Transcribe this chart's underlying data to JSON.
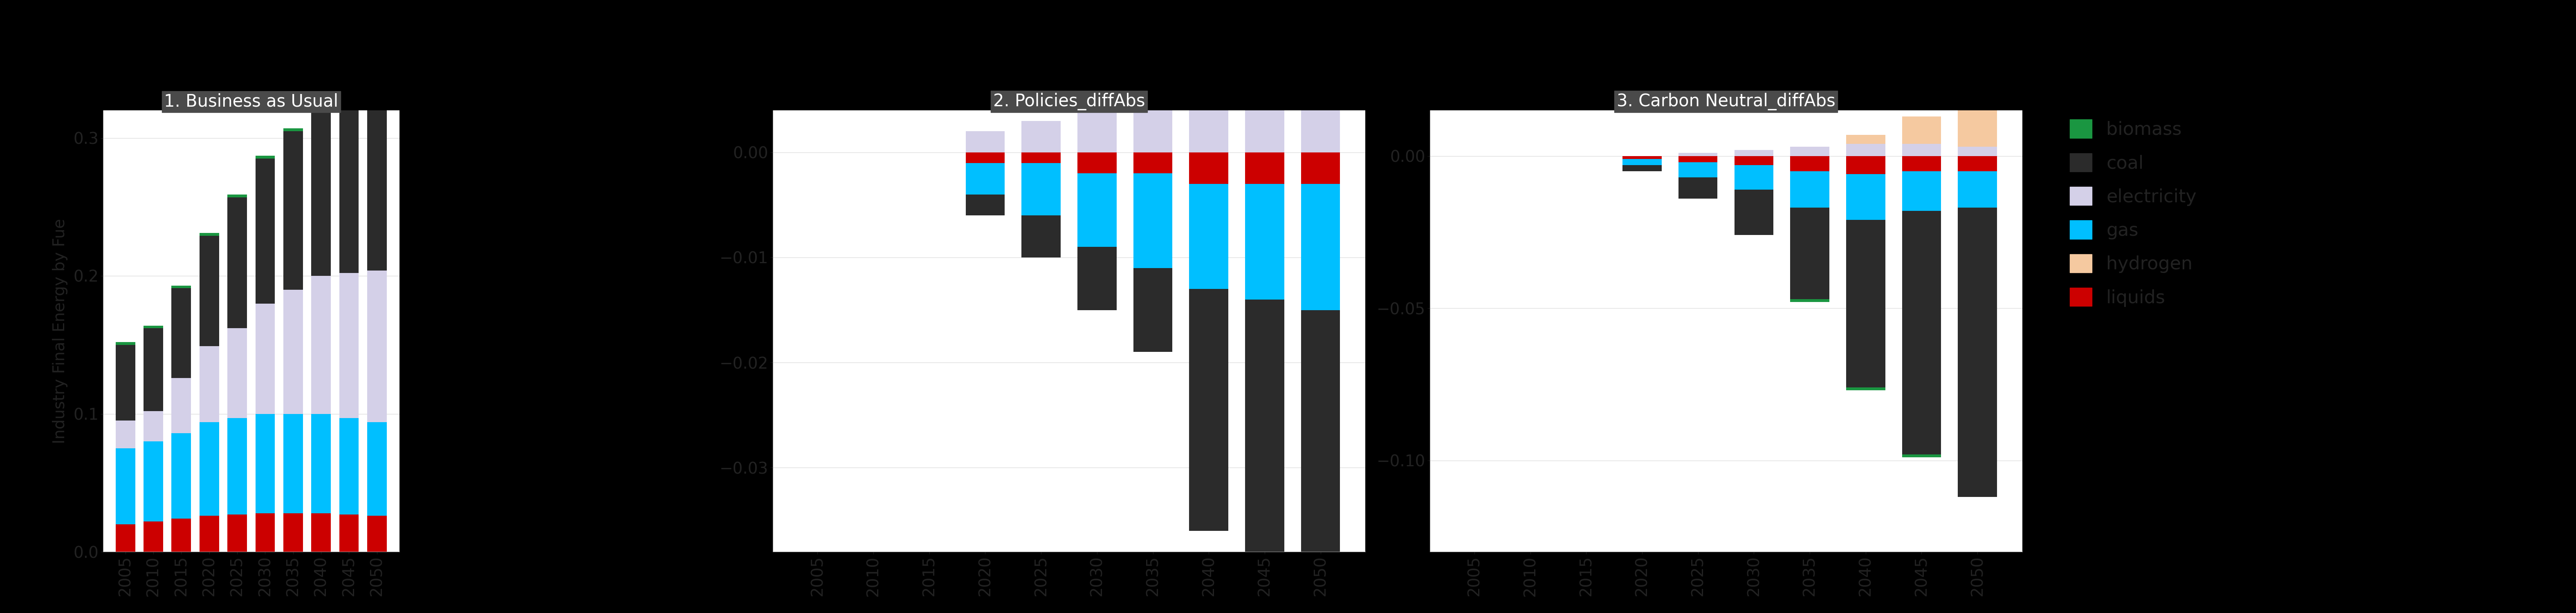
{
  "years": [
    2005,
    2010,
    2015,
    2020,
    2025,
    2030,
    2035,
    2040,
    2045,
    2050
  ],
  "bau": {
    "liquids": [
      0.02,
      0.022,
      0.024,
      0.026,
      0.027,
      0.028,
      0.028,
      0.028,
      0.027,
      0.026
    ],
    "gas": [
      0.055,
      0.058,
      0.062,
      0.068,
      0.07,
      0.072,
      0.072,
      0.072,
      0.07,
      0.068
    ],
    "electricity": [
      0.02,
      0.022,
      0.04,
      0.055,
      0.065,
      0.08,
      0.09,
      0.1,
      0.105,
      0.11
    ],
    "coal": [
      0.055,
      0.06,
      0.065,
      0.08,
      0.095,
      0.105,
      0.115,
      0.12,
      0.12,
      0.12
    ],
    "biomass": [
      0.002,
      0.002,
      0.002,
      0.002,
      0.002,
      0.002,
      0.002,
      0.002,
      0.002,
      0.002
    ],
    "hydrogen": [
      0.0,
      0.0,
      0.0,
      0.0,
      0.0,
      0.0,
      0.0,
      0.003,
      0.005,
      0.007
    ]
  },
  "policies_diff": {
    "liquids": [
      0.0,
      0.0,
      0.0,
      -0.001,
      -0.001,
      -0.002,
      -0.002,
      -0.003,
      -0.003,
      -0.003
    ],
    "gas": [
      0.0,
      0.0,
      0.0,
      -0.003,
      -0.005,
      -0.007,
      -0.009,
      -0.01,
      -0.011,
      -0.012
    ],
    "electricity": [
      0.0,
      0.0,
      0.0,
      0.002,
      0.003,
      0.004,
      0.004,
      0.004,
      0.004,
      0.004
    ],
    "coal": [
      0.0,
      0.0,
      0.0,
      -0.002,
      -0.004,
      -0.006,
      -0.008,
      -0.023,
      -0.029,
      -0.032
    ],
    "biomass": [
      0.0,
      0.0,
      0.0,
      0.0,
      0.0,
      0.0,
      0.0,
      0.0,
      0.0,
      0.0
    ],
    "hydrogen": [
      0.0,
      0.0,
      0.0,
      0.0,
      0.0,
      0.0,
      0.0,
      0.001,
      0.002,
      0.003
    ]
  },
  "cn_diff": {
    "liquids": [
      0.0,
      0.0,
      0.0,
      -0.001,
      -0.002,
      -0.003,
      -0.005,
      -0.006,
      -0.005,
      -0.005
    ],
    "gas": [
      0.0,
      0.0,
      0.0,
      -0.002,
      -0.005,
      -0.008,
      -0.012,
      -0.015,
      -0.013,
      -0.012
    ],
    "electricity": [
      0.0,
      0.0,
      0.0,
      0.0,
      0.001,
      0.002,
      0.003,
      0.004,
      0.004,
      0.003
    ],
    "coal": [
      0.0,
      0.0,
      0.0,
      -0.002,
      -0.007,
      -0.015,
      -0.03,
      -0.055,
      -0.08,
      -0.095
    ],
    "biomass": [
      0.0,
      0.0,
      0.0,
      0.0,
      0.0,
      0.0,
      -0.001,
      -0.001,
      -0.001,
      0.0
    ],
    "hydrogen": [
      0.0,
      0.0,
      0.0,
      0.0,
      0.0,
      0.0,
      0.0,
      0.003,
      0.009,
      0.015
    ]
  },
  "colors": {
    "biomass": "#1a9641",
    "coal": "#2b2b2b",
    "electricity": "#d4d0e8",
    "gas": "#00bfff",
    "hydrogen": "#f5c9a0",
    "liquids": "#cc0000"
  },
  "bau_ylim": [
    0.0,
    0.32
  ],
  "bau_yticks": [
    0.0,
    0.1,
    0.2,
    0.3
  ],
  "policies_ylim": [
    -0.038,
    0.004
  ],
  "policies_yticks": [
    0.0,
    -0.01,
    -0.02,
    -0.03
  ],
  "cn_ylim": [
    -0.13,
    0.015
  ],
  "cn_yticks": [
    0.0,
    -0.05,
    -0.1
  ],
  "bau_title": "1. Business as Usual",
  "policies_title": "2. Policies_diffAbs",
  "cn_title": "3. Carbon Neutral_diffAbs",
  "ylabel": "Industry Final Energy by Fue",
  "background_color": "#000000",
  "plot_bg": "#ffffff",
  "title_bg": "#4a4a4a",
  "title_fg": "#ffffff",
  "grid_color": "#dddddd",
  "spine_color": "#999999"
}
